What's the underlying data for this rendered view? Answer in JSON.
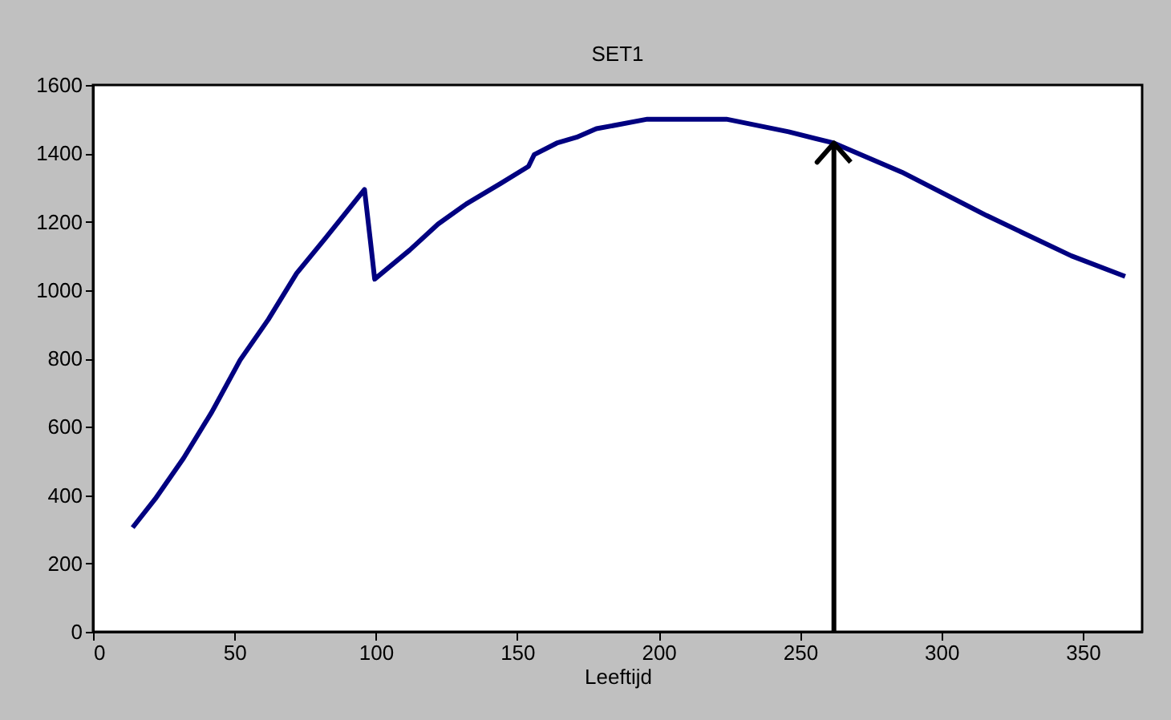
{
  "chart_data": {
    "type": "line",
    "title": "SET1",
    "xlabel": "Leeftijd",
    "x": [
      14,
      22,
      32,
      42,
      52,
      62,
      72,
      82,
      96,
      98,
      99.6,
      112,
      122,
      132,
      144,
      154,
      156,
      164,
      171,
      178,
      196,
      224,
      246,
      262,
      286,
      316,
      346,
      365
    ],
    "series": [
      {
        "color": "#000080",
        "values": [
          305,
          389,
          508,
          643,
          795,
          914,
          1049,
          1150,
          1294,
          1150,
          1032,
          1117,
          1193,
          1252,
          1311,
          1362,
          1396,
          1430,
          1447,
          1472,
          1500,
          1500,
          1463,
          1430,
          1345,
          1218,
          1100,
          1040
        ]
      }
    ],
    "xlim": [
      0,
      371
    ],
    "xticks": [
      0,
      50,
      100,
      150,
      200,
      250,
      300,
      350
    ],
    "ylim": [
      0,
      1600
    ],
    "yticks": [
      0,
      200,
      400,
      600,
      800,
      1000,
      1200,
      1400,
      1600
    ],
    "grid": false,
    "marker": "none",
    "line_style": "solid",
    "ref_lines": [
      {
        "axis": "x",
        "value": 262,
        "color": "#000000"
      }
    ]
  }
}
